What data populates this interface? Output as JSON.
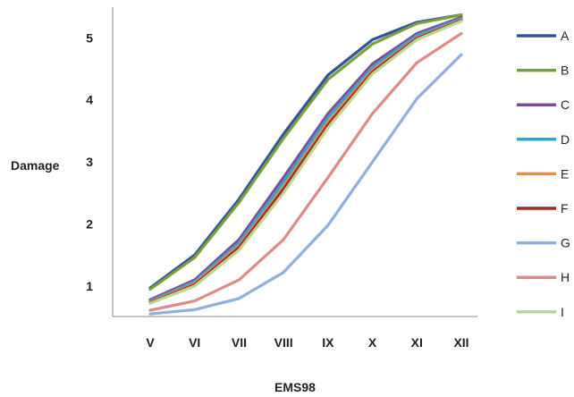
{
  "chart_data": {
    "type": "line",
    "title": "",
    "xlabel": "EMS98",
    "ylabel": "Damage",
    "categories": [
      "V",
      "VI",
      "VII",
      "VIII",
      "IX",
      "X",
      "XI",
      "XII"
    ],
    "y_ticks": [
      1,
      2,
      3,
      4,
      5
    ],
    "ylim": [
      0.45,
      5.45
    ],
    "grid": false,
    "legend": "right",
    "series": [
      {
        "name": "A",
        "color": "#2f5597",
        "values": [
          0.97,
          1.5,
          2.4,
          3.45,
          4.4,
          4.97,
          5.25,
          5.37
        ]
      },
      {
        "name": "B",
        "color": "#77a03a",
        "values": [
          0.95,
          1.46,
          2.35,
          3.38,
          4.33,
          4.9,
          5.23,
          5.37
        ]
      },
      {
        "name": "C",
        "color": "#7a4e9e",
        "values": [
          0.78,
          1.1,
          1.75,
          2.75,
          3.78,
          4.58,
          5.07,
          5.33
        ]
      },
      {
        "name": "D",
        "color": "#3ca2c0",
        "values": [
          0.76,
          1.07,
          1.7,
          2.68,
          3.72,
          4.53,
          5.04,
          5.31
        ]
      },
      {
        "name": "E",
        "color": "#ee8c3a",
        "values": [
          0.74,
          1.04,
          1.65,
          2.6,
          3.65,
          4.48,
          5.0,
          5.29
        ]
      },
      {
        "name": "F",
        "color": "#9b2c2a",
        "values": [
          0.73,
          1.02,
          1.62,
          2.56,
          3.6,
          4.45,
          4.99,
          5.28
        ]
      },
      {
        "name": "G",
        "color": "#8eb0de",
        "values": [
          0.55,
          0.62,
          0.8,
          1.22,
          1.98,
          3.0,
          4.02,
          4.73
        ]
      },
      {
        "name": "H",
        "color": "#de8a87",
        "values": [
          0.61,
          0.76,
          1.1,
          1.75,
          2.75,
          3.78,
          4.6,
          5.07
        ]
      },
      {
        "name": "I",
        "color": "#b9d792",
        "values": [
          0.72,
          1.0,
          1.58,
          2.5,
          3.55,
          4.42,
          4.97,
          5.27
        ]
      }
    ]
  }
}
